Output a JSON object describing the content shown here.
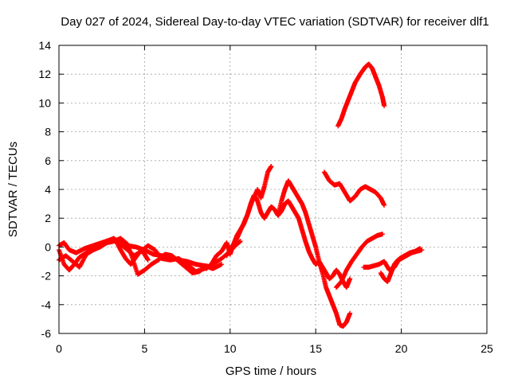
{
  "chart_data": {
    "type": "scatter",
    "title": "Day 027 of 2024, Sidereal Day-to-day VTEC variation (SDTVAR) for receiver dlf1",
    "xlabel": "GPS time / hours",
    "ylabel": "SDTVAR / TECUs",
    "xlim": [
      0,
      25
    ],
    "ylim": [
      -6,
      14
    ],
    "xticks": [
      "0",
      "5",
      "10",
      "15",
      "20",
      "25"
    ],
    "yticks": [
      "-6",
      "-4",
      "-2",
      "0",
      "2",
      "4",
      "6",
      "8",
      "10",
      "12",
      "14"
    ],
    "grid": true,
    "legend": "none",
    "marker": "plus",
    "color": "#ff0000",
    "series": [
      {
        "x": [
          0.0,
          0.3,
          0.6,
          1.0,
          1.5,
          2.0,
          2.5,
          3.0,
          3.5,
          4.0,
          4.5,
          5.0,
          5.5,
          6.0,
          6.5,
          7.0,
          7.5,
          8.0,
          8.5,
          9.0,
          9.5
        ],
        "y": [
          0.1,
          0.3,
          -0.2,
          -0.4,
          -0.1,
          0.1,
          0.3,
          0.5,
          0.3,
          0.1,
          0.0,
          -0.2,
          -0.5,
          -0.6,
          -0.7,
          -0.9,
          -1.0,
          -1.2,
          -1.3,
          -1.5,
          -1.2
        ]
      },
      {
        "x": [
          0.0,
          0.4,
          0.8,
          1.2,
          1.6,
          2.0,
          2.4,
          2.8,
          3.2,
          3.6,
          4.0,
          4.4,
          4.8,
          5.2,
          5.6,
          6.0,
          6.5,
          7.0,
          7.5,
          8.0,
          8.5,
          9.0,
          9.5,
          10.0,
          10.3,
          10.6
        ],
        "y": [
          -0.9,
          -0.6,
          -1.0,
          -1.4,
          -0.5,
          -0.2,
          0.2,
          0.4,
          0.6,
          0.2,
          -0.2,
          -0.6,
          -0.3,
          0.1,
          -0.2,
          -0.8,
          -0.9,
          -0.8,
          -1.2,
          -1.7,
          -1.5,
          -1.2,
          -0.8,
          -0.3,
          0.1,
          0.4
        ]
      },
      {
        "x": [
          0.0,
          0.3,
          0.6,
          0.9,
          1.2,
          1.6,
          2.0,
          2.4,
          2.8,
          3.2,
          3.6,
          4.0,
          4.3,
          4.6,
          5.0,
          5.4,
          5.8,
          6.2,
          6.6,
          7.0,
          7.4,
          7.8,
          8.2,
          8.6,
          9.0
        ],
        "y": [
          -0.2,
          -1.2,
          -1.6,
          -1.2,
          -0.7,
          -0.4,
          -0.2,
          0.0,
          0.3,
          0.4,
          0.6,
          0.2,
          -0.8,
          -1.9,
          -1.6,
          -1.2,
          -0.9,
          -0.5,
          -0.6,
          -1.0,
          -1.4,
          -1.8,
          -1.7,
          -1.3,
          -1.5
        ]
      },
      {
        "x": [
          3.3,
          3.6,
          3.9,
          4.2,
          4.5,
          4.8,
          5.0,
          5.2
        ],
        "y": [
          0.5,
          -0.2,
          -0.8,
          -1.2,
          -0.7,
          -0.2,
          -0.5,
          -0.9
        ]
      },
      {
        "x": [
          8.6,
          8.9,
          9.2,
          9.5,
          9.8,
          10.0,
          10.2,
          10.4,
          10.6,
          10.8,
          11.0,
          11.2,
          11.4,
          11.6,
          11.8,
          12.0,
          12.2,
          12.4,
          12.6,
          12.8,
          13.0,
          13.2,
          13.4,
          13.6,
          13.8,
          14.0,
          14.2,
          14.4,
          14.6,
          14.8,
          15.0,
          15.2,
          15.4,
          15.6,
          15.8,
          16.0,
          16.2,
          16.4,
          16.6,
          16.8,
          17.0
        ],
        "y": [
          -1.5,
          -1.2,
          -0.6,
          -0.3,
          0.3,
          -0.5,
          0.2,
          0.8,
          1.2,
          1.6,
          2.2,
          3.0,
          3.6,
          3.2,
          2.4,
          2.0,
          2.4,
          2.8,
          2.6,
          2.2,
          2.5,
          3.0,
          3.2,
          2.8,
          2.4,
          2.0,
          1.2,
          0.4,
          -0.3,
          -0.8,
          -1.2,
          -1.0,
          -1.4,
          -1.8,
          -2.2,
          -2.0,
          -1.6,
          -1.9,
          -2.4,
          -2.8,
          -2.2
        ]
      },
      {
        "x": [
          9.8,
          10.1,
          10.4,
          10.7,
          11.0,
          11.3,
          11.6,
          11.8,
          12.0,
          12.2,
          12.4
        ],
        "y": [
          -0.6,
          0.0,
          0.6,
          1.4,
          2.2,
          3.2,
          4.0,
          3.4,
          4.2,
          5.2,
          5.6
        ]
      },
      {
        "x": [
          12.8,
          13.0,
          13.2,
          13.4,
          13.6,
          13.8,
          14.0,
          14.2,
          14.4,
          14.6,
          14.8,
          15.0,
          15.2,
          15.4,
          15.6,
          15.8,
          16.0,
          16.2,
          16.4,
          16.6,
          16.8,
          17.0
        ],
        "y": [
          2.2,
          3.2,
          4.0,
          4.6,
          4.2,
          3.8,
          3.4,
          3.0,
          2.4,
          1.6,
          0.8,
          0.0,
          -1.0,
          -1.8,
          -2.8,
          -3.4,
          -4.0,
          -4.6,
          -5.4,
          -5.5,
          -5.2,
          -4.6
        ]
      },
      {
        "x": [
          15.5,
          15.8,
          16.1,
          16.4,
          16.7,
          17.0,
          17.3,
          17.6,
          17.9,
          18.2,
          18.5,
          18.8,
          19.0
        ],
        "y": [
          5.2,
          4.6,
          4.3,
          4.4,
          3.8,
          3.2,
          3.5,
          4.0,
          4.2,
          4.0,
          3.8,
          3.4,
          2.9
        ]
      },
      {
        "x": [
          16.2,
          16.5,
          16.8,
          17.1,
          17.4,
          17.7,
          18.0,
          18.3,
          18.6,
          18.9
        ],
        "y": [
          -2.8,
          -2.4,
          -1.6,
          -1.0,
          -0.5,
          0.0,
          0.4,
          0.6,
          0.8,
          0.9
        ]
      },
      {
        "x": [
          16.3,
          16.5,
          16.7,
          16.9,
          17.1,
          17.3,
          17.6,
          17.9,
          18.1,
          18.3,
          18.5,
          18.7,
          18.9,
          19.0
        ],
        "y": [
          8.4,
          8.9,
          9.6,
          10.2,
          10.8,
          11.4,
          12.0,
          12.5,
          12.7,
          12.4,
          11.8,
          11.2,
          10.4,
          9.8
        ]
      },
      {
        "x": [
          17.8,
          18.1,
          18.4,
          18.7,
          19.0,
          19.3,
          19.6,
          19.9,
          20.2,
          20.5,
          20.8,
          21.1
        ],
        "y": [
          -1.4,
          -1.4,
          -1.3,
          -1.2,
          -1.0,
          -1.6,
          -1.4,
          -0.8,
          -0.6,
          -0.4,
          -0.3,
          -0.1
        ]
      },
      {
        "x": [
          18.8,
          19.0,
          19.2,
          19.4,
          19.6,
          19.8,
          20.0,
          20.3,
          20.6,
          20.9,
          21.2
        ],
        "y": [
          -1.8,
          -2.2,
          -2.4,
          -1.8,
          -1.2,
          -0.9,
          -0.8,
          -0.6,
          -0.4,
          -0.3,
          -0.2
        ]
      }
    ]
  }
}
